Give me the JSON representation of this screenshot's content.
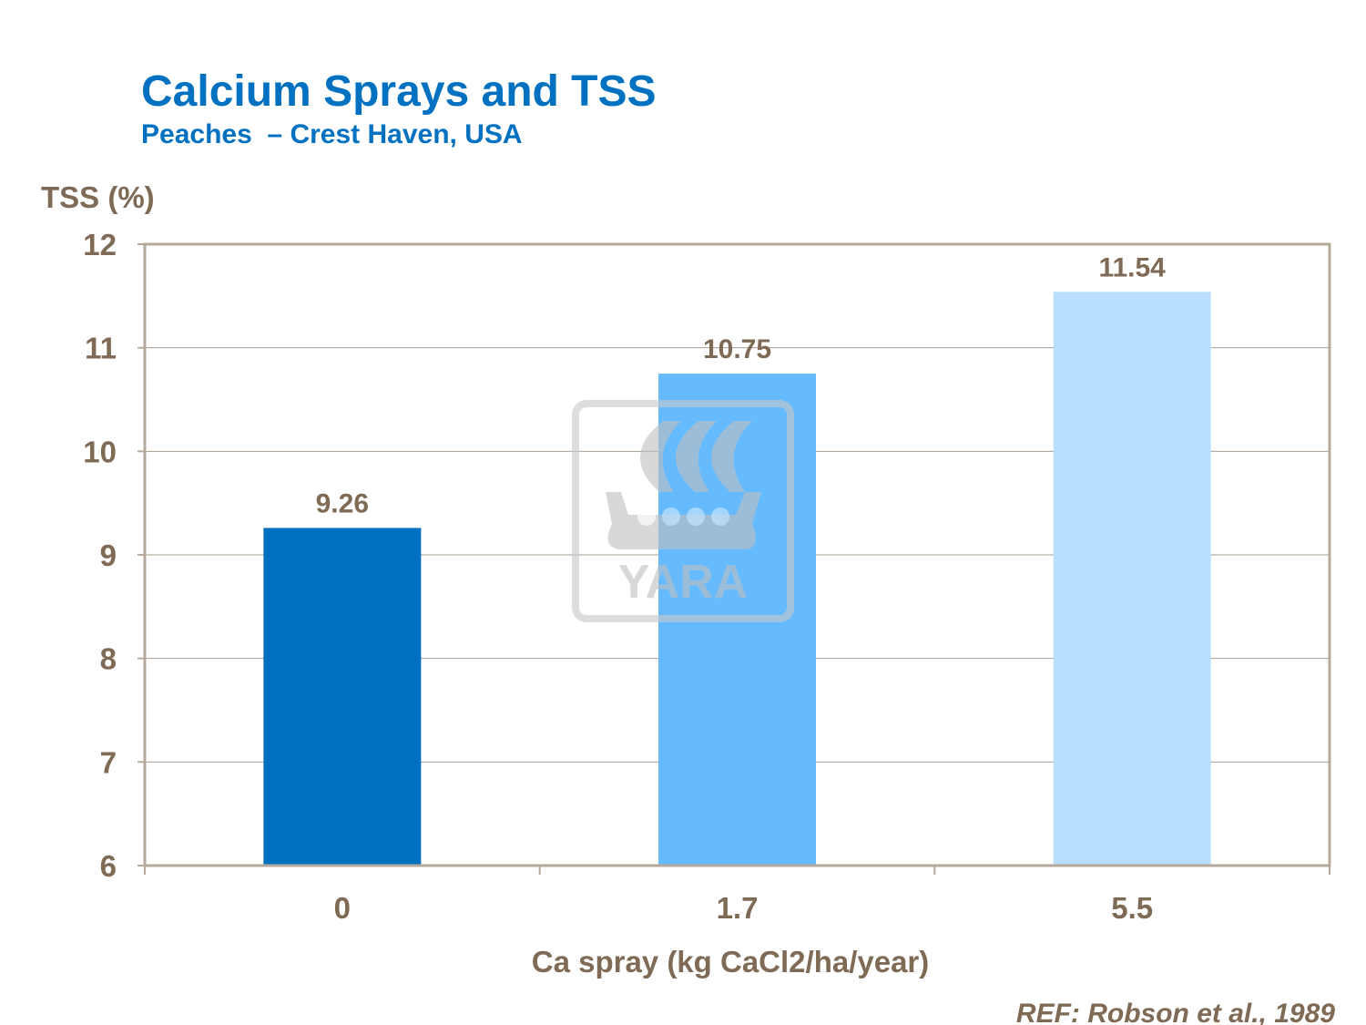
{
  "chart_data": {
    "type": "bar",
    "title": "Calcium Sprays and TSS",
    "subtitle": "Peaches  – Crest Haven, USA",
    "ylabel": "TSS (%)",
    "xlabel": "Ca spray (kg CaCl2/ha/year)",
    "categories": [
      "0",
      "1.7",
      "5.5"
    ],
    "values": [
      9.26,
      10.75,
      11.54
    ],
    "data_labels": [
      "9.26",
      "10.75",
      "11.54"
    ],
    "colors": [
      "#0070C0",
      "#66BBFF",
      "#B8DFFF"
    ],
    "ylim": [
      6,
      12
    ],
    "yticks": [
      "6",
      "7",
      "8",
      "9",
      "10",
      "11",
      "12"
    ],
    "grid": true,
    "reference": "REF: Robson et al., 1989"
  },
  "watermark": {
    "text": "YARA"
  },
  "colors": {
    "title": "#0070C0",
    "text": "#7F6A55",
    "axis": "#B5A99B",
    "grid": "#A89D90"
  }
}
